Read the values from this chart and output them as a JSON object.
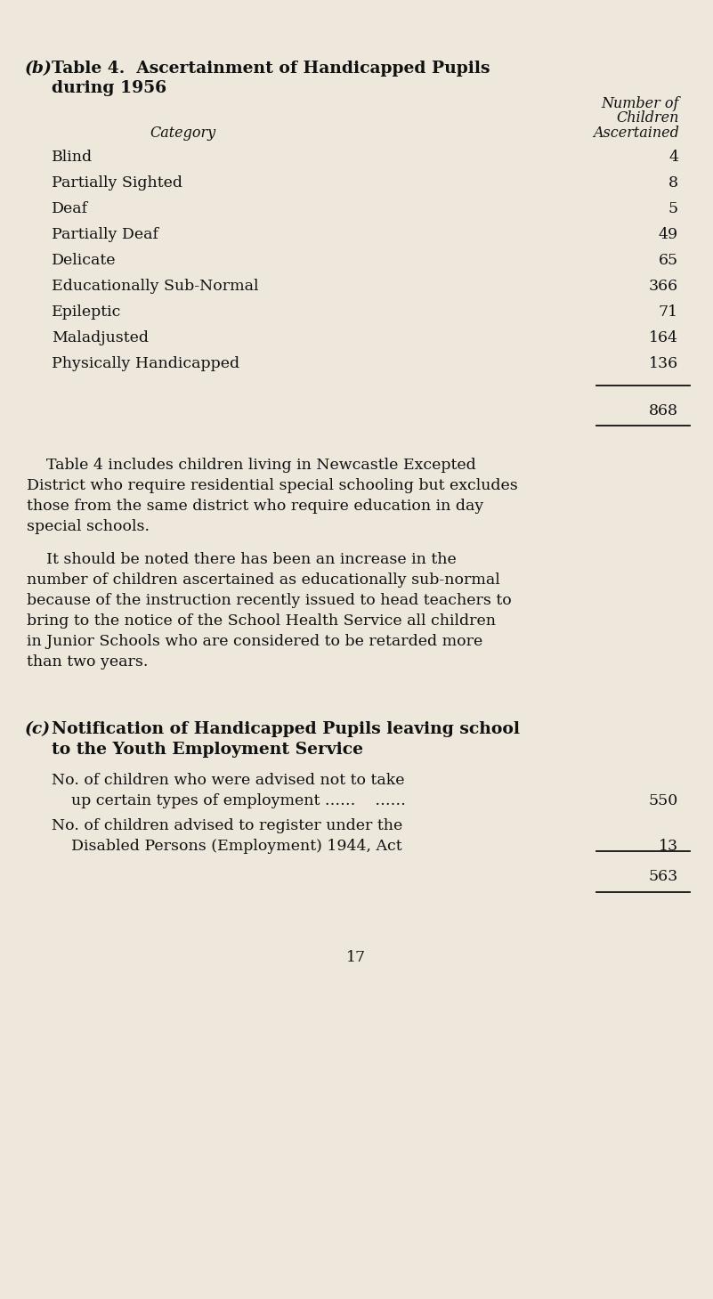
{
  "bg_color": "#ede8db",
  "text_color": "#111111",
  "title_b": "(b)",
  "title_main": "Table 4.  Ascertainment of Handicapped Pupils",
  "title_sub": "during 1956",
  "col_header_line1": "Number of",
  "col_header_line2": "Children",
  "col_header_line3": "Ascertained",
  "col_label": "Category",
  "categories": [
    "Blind",
    "Partially Sighted",
    "Deaf",
    "Partially Deaf",
    "Delicate",
    "Educationally Sub-Normal",
    "Epileptic",
    "Maladjusted",
    "Physically Handicapped"
  ],
  "values": [
    "4",
    "8",
    "5",
    "49",
    "65",
    "366",
    "71",
    "164",
    "136"
  ],
  "total": "868",
  "para1_indent": "    Table 4 includes children living in Newcastle Excepted",
  "para1_lines": [
    "District who require residential special schooling but excludes",
    "those from the same district who require education in day",
    "special schools."
  ],
  "para2_indent": "    It should be noted there has been an increase in the",
  "para2_lines": [
    "number of children ascertained as educationally sub-normal",
    "because of the instruction recently issued to head teachers to",
    "bring to the notice of the School Health Service all children",
    "in Junior Schools who are considered to be retarded more",
    "than two years."
  ],
  "title_c": "(c)",
  "title_c_main1": "Notification of Handicapped Pupils leaving school",
  "title_c_main2": "to the Youth Employment Service",
  "section_c_row1a": "No. of children who were advised not to take",
  "section_c_row1b": "    up certain types of employment ……    ……",
  "section_c_row1_value": "550",
  "section_c_row2a": "No. of children advised to register under the",
  "section_c_row2b": "    Disabled Persons (Employment) 1944, Act",
  "section_c_row2_value": "13",
  "section_c_total": "563",
  "page_number": "17",
  "title_fontsize": 13.5,
  "body_fontsize": 12.5,
  "header_fontsize": 11.5,
  "page_fontsize": 12.5
}
